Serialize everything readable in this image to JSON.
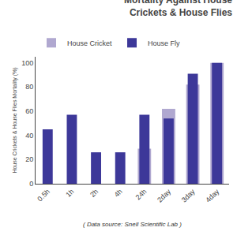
{
  "chart_data": {
    "type": "bar",
    "title": "Mortality Against House\nCrickets & House Flies",
    "ylabel": "House Crickets & House Flies Mortality (%)",
    "categories": [
      "0.5h",
      "1h",
      "2h",
      "4h",
      "24h",
      "2day",
      "3day",
      "4day"
    ],
    "series": [
      {
        "name": "House Cricket",
        "color": "#b0a8d0",
        "values": [
          0,
          0,
          0,
          0,
          29,
          62,
          82,
          100
        ]
      },
      {
        "name": "House Fly",
        "color": "#3d3899",
        "values": [
          45,
          57,
          26,
          26,
          57,
          54,
          91,
          100
        ]
      }
    ],
    "ylim": [
      0,
      105
    ],
    "yticks": [
      0,
      20,
      40,
      60,
      80,
      100
    ],
    "grid": false,
    "stacked": false,
    "legend": "upper left",
    "annotations": [
      "( Data source: Snell Scientific Lab )"
    ]
  }
}
